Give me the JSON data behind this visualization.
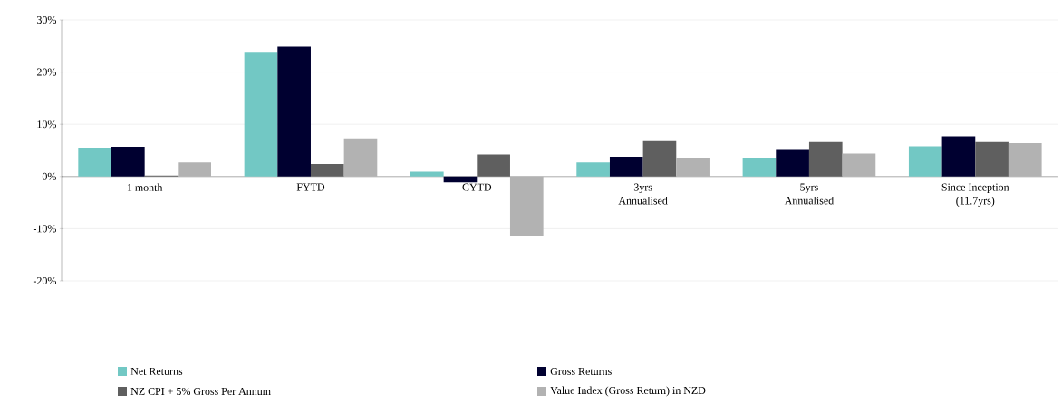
{
  "chart_data": {
    "type": "bar",
    "categories": [
      "1 month",
      "FYTD",
      "CYTD",
      "3yrs\nAnnualised",
      "5yrs\nAnnualised",
      "Since Inception\n(11.7yrs)"
    ],
    "series": [
      {
        "name": "Net Returns",
        "color": "#72c8c4",
        "values": [
          5.5,
          23.9,
          0.9,
          2.7,
          3.6,
          5.8
        ]
      },
      {
        "name": "Gross Returns",
        "color": "#000030",
        "values": [
          5.7,
          24.9,
          -1.1,
          3.8,
          5.1,
          7.7
        ]
      },
      {
        "name": "NZ CPI + 5% Gross Per Annum",
        "color": "#5f5f5f",
        "values": [
          0.2,
          2.4,
          4.2,
          6.8,
          6.6,
          6.6
        ]
      },
      {
        "name": "Value Index (Gross Return) in NZD",
        "color": "#b2b2b2",
        "values": [
          2.7,
          7.3,
          -11.4,
          3.6,
          4.4,
          6.4
        ]
      }
    ],
    "ylim": [
      -20,
      30
    ],
    "yticks": [
      {
        "value": -20,
        "label": "-20%"
      },
      {
        "value": -10,
        "label": "-10%"
      },
      {
        "value": 0,
        "label": "0%"
      },
      {
        "value": 10,
        "label": "10%"
      },
      {
        "value": 20,
        "label": "20%"
      },
      {
        "value": 30,
        "label": "30%"
      }
    ],
    "grid": "y",
    "legend": "bottom"
  }
}
